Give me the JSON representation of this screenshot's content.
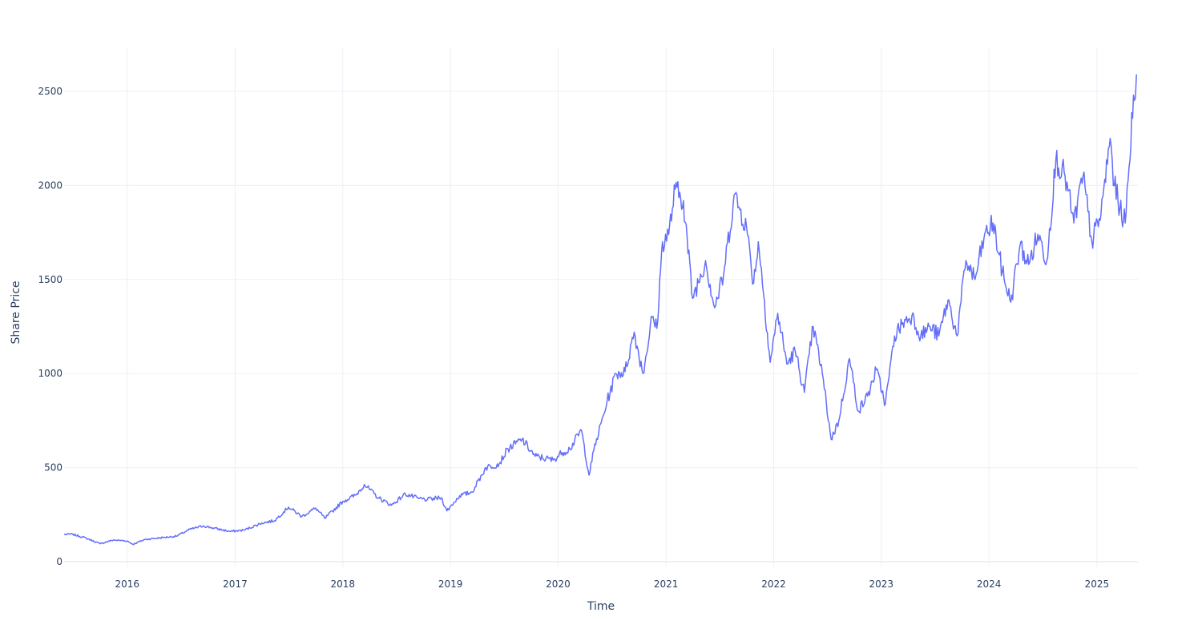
{
  "chart_data": {
    "type": "line",
    "title": "",
    "xlabel": "Time",
    "ylabel": "Share Price",
    "xlim": [
      "2015-06-01",
      "2025-05-20"
    ],
    "ylim": [
      -30,
      2730
    ],
    "grid": true,
    "legend": "none",
    "x_ticks": [
      "2016",
      "2017",
      "2018",
      "2019",
      "2020",
      "2021",
      "2022",
      "2023",
      "2024",
      "2025"
    ],
    "y_ticks": [
      0,
      500,
      1000,
      1500,
      2000,
      2500
    ],
    "colors": {
      "line": "#636efa",
      "grid": "#ebf0f8",
      "text": "#2a3f5f",
      "background": "#ffffff"
    },
    "series": [
      {
        "x": [
          "2015-06-01",
          "2015-07-01",
          "2015-08-15",
          "2015-10-01",
          "2015-11-15",
          "2016-01-01",
          "2016-01-20",
          "2016-03-01",
          "2016-05-01",
          "2016-06-15",
          "2016-08-01",
          "2016-09-15",
          "2016-10-15",
          "2016-12-15",
          "2017-02-01",
          "2017-04-01",
          "2017-05-15",
          "2017-07-01",
          "2017-08-15",
          "2017-10-01",
          "2017-11-01",
          "2018-01-01",
          "2018-02-15",
          "2018-03-15",
          "2018-05-01",
          "2018-06-15",
          "2018-08-01",
          "2018-09-15",
          "2018-10-15",
          "2018-12-01",
          "2018-12-20",
          "2019-02-01",
          "2019-03-15",
          "2019-05-01",
          "2019-06-15",
          "2019-07-15",
          "2019-09-01",
          "2019-10-15",
          "2019-12-15",
          "2020-01-15",
          "2020-02-10",
          "2020-03-20",
          "2020-04-15",
          "2020-05-01",
          "2020-06-15",
          "2020-07-15",
          "2020-08-15",
          "2020-09-15",
          "2020-10-15",
          "2020-11-15",
          "2020-12-01",
          "2020-12-20",
          "2021-01-10",
          "2021-02-01",
          "2021-03-01",
          "2021-04-01",
          "2021-05-15",
          "2021-06-15",
          "2021-07-15",
          "2021-08-20",
          "2021-10-01",
          "2021-10-25",
          "2021-11-10",
          "2021-12-01",
          "2021-12-20",
          "2022-01-15",
          "2022-02-15",
          "2022-03-15",
          "2022-04-15",
          "2022-05-15",
          "2022-06-15",
          "2022-07-15",
          "2022-08-10",
          "2022-09-15",
          "2022-10-15",
          "2022-11-15",
          "2022-12-15",
          "2023-01-15",
          "2023-02-15",
          "2023-03-15",
          "2023-04-15",
          "2023-05-15",
          "2023-06-15",
          "2023-07-15",
          "2023-08-15",
          "2023-09-15",
          "2023-10-15",
          "2023-11-15",
          "2023-12-15",
          "2024-01-15",
          "2024-02-15",
          "2024-03-15",
          "2024-04-15",
          "2024-05-15",
          "2024-06-15",
          "2024-07-15",
          "2024-08-15",
          "2024-09-15",
          "2024-10-15",
          "2024-11-15",
          "2024-12-15",
          "2025-01-15",
          "2025-02-15",
          "2025-03-01",
          "2025-03-20",
          "2025-04-07",
          "2025-04-20",
          "2025-05-05",
          "2025-05-15"
        ],
        "y": [
          145,
          145,
          125,
          95,
          115,
          110,
          92,
          118,
          128,
          135,
          172,
          190,
          180,
          160,
          168,
          205,
          218,
          290,
          240,
          285,
          230,
          320,
          355,
          410,
          340,
          300,
          360,
          335,
          330,
          340,
          270,
          350,
          370,
          500,
          520,
          600,
          650,
          560,
          540,
          580,
          600,
          700,
          460,
          590,
          850,
          1000,
          1010,
          1220,
          1000,
          1300,
          1240,
          1700,
          1740,
          1980,
          1920,
          1400,
          1600,
          1350,
          1520,
          1950,
          1780,
          1480,
          1700,
          1380,
          1060,
          1320,
          1050,
          1120,
          900,
          1250,
          1000,
          650,
          750,
          1080,
          800,
          880,
          1020,
          840,
          1200,
          1270,
          1310,
          1200,
          1250,
          1200,
          1390,
          1200,
          1600,
          1500,
          1720,
          1800,
          1540,
          1380,
          1680,
          1580,
          1740,
          1600,
          2140,
          2050,
          1800,
          2050,
          1700,
          1850,
          2250,
          2000,
          1880,
          1800,
          2100,
          2480,
          2590
        ],
        "color": "#636efa"
      }
    ]
  }
}
